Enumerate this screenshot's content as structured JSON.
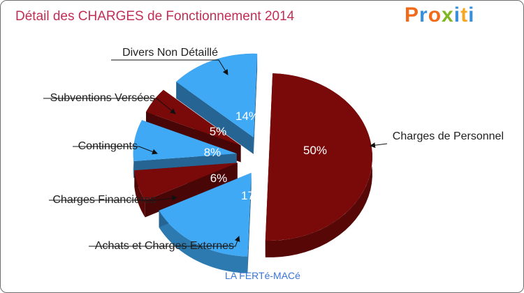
{
  "title": "Détail des CHARGES de Fonctionnement 2014",
  "logo": {
    "text": "Proxiti",
    "colors": [
      "#f06a1a",
      "#3b8fd9",
      "#f06a1a",
      "#7fb81e",
      "#3b8fd9",
      "#f5a623",
      "#3b8fd9"
    ]
  },
  "subtitle": "LA FERTé-MACé",
  "colors": {
    "title": "#c12e56",
    "dark_red": "#7a0a0a",
    "blue": "#3fa9f5",
    "subtitle": "#3b74d8"
  },
  "chart_data": {
    "type": "pie",
    "title": "Détail des CHARGES de Fonctionnement 2014",
    "subtitle": "LA FERTé-MACé",
    "slices": [
      {
        "label": "Charges de Personnel",
        "value": 50,
        "display": "50%",
        "color": "#7a0a0a"
      },
      {
        "label": "Achats et Charges Externes",
        "value": 17,
        "display": "17%",
        "color": "#3fa9f5"
      },
      {
        "label": "Charges Financières",
        "value": 6,
        "display": "6%",
        "color": "#7a0a0a"
      },
      {
        "label": "Contingents",
        "value": 8,
        "display": "8%",
        "color": "#3fa9f5"
      },
      {
        "label": "Subventions Versées",
        "value": 5,
        "display": "5%",
        "color": "#7a0a0a"
      },
      {
        "label": "Divers Non Détaillé",
        "value": 14,
        "display": "14%",
        "color": "#3fa9f5"
      }
    ]
  }
}
